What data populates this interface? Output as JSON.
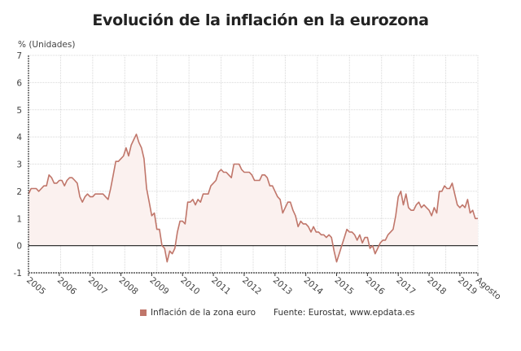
{
  "chart_data": {
    "type": "area",
    "title": "Evolución de la inflación en la eurozona",
    "ylabel": "% (Unidades)",
    "xlabel": "",
    "ylim": [
      -1,
      7
    ],
    "yticks": [
      "-1",
      "0",
      "1",
      "2",
      "3",
      "4",
      "5",
      "6",
      "7"
    ],
    "xtick_labels": [
      "2005",
      "2006",
      "2007",
      "2008",
      "2009",
      "2010",
      "2011",
      "2012",
      "2013",
      "2014",
      "2015",
      "2016",
      "2017",
      "2018",
      "2019",
      "Agosto"
    ],
    "x_start": "2005-01",
    "x_end": "2019-08",
    "frequency": "monthly",
    "grid": true,
    "legend_position": "bottom",
    "series": [
      {
        "name": "Inflación de la zona euro",
        "color": "#c0766a",
        "values": [
          1.9,
          2.1,
          2.1,
          2.1,
          2.0,
          2.1,
          2.2,
          2.2,
          2.6,
          2.5,
          2.3,
          2.3,
          2.4,
          2.4,
          2.2,
          2.4,
          2.5,
          2.5,
          2.4,
          2.3,
          1.8,
          1.6,
          1.8,
          1.9,
          1.8,
          1.8,
          1.9,
          1.9,
          1.9,
          1.9,
          1.8,
          1.7,
          2.1,
          2.6,
          3.1,
          3.1,
          3.2,
          3.3,
          3.6,
          3.3,
          3.7,
          3.9,
          4.1,
          3.8,
          3.6,
          3.2,
          2.1,
          1.6,
          1.1,
          1.2,
          0.6,
          0.6,
          0.0,
          -0.1,
          -0.6,
          -0.2,
          -0.3,
          -0.1,
          0.5,
          0.9,
          0.9,
          0.8,
          1.6,
          1.6,
          1.7,
          1.5,
          1.7,
          1.6,
          1.9,
          1.9,
          1.9,
          2.2,
          2.3,
          2.4,
          2.7,
          2.8,
          2.7,
          2.7,
          2.6,
          2.5,
          3.0,
          3.0,
          3.0,
          2.8,
          2.7,
          2.7,
          2.7,
          2.6,
          2.4,
          2.4,
          2.4,
          2.6,
          2.6,
          2.5,
          2.2,
          2.2,
          2.0,
          1.8,
          1.7,
          1.2,
          1.4,
          1.6,
          1.6,
          1.3,
          1.1,
          0.7,
          0.9,
          0.8,
          0.8,
          0.7,
          0.5,
          0.7,
          0.5,
          0.5,
          0.4,
          0.4,
          0.3,
          0.4,
          0.3,
          -0.2,
          -0.6,
          -0.3,
          0.0,
          0.3,
          0.6,
          0.5,
          0.5,
          0.4,
          0.2,
          0.4,
          0.1,
          0.3,
          0.3,
          -0.1,
          0.0,
          -0.3,
          -0.1,
          0.1,
          0.2,
          0.2,
          0.4,
          0.5,
          0.6,
          1.1,
          1.8,
          2.0,
          1.5,
          1.9,
          1.4,
          1.3,
          1.3,
          1.5,
          1.6,
          1.4,
          1.5,
          1.4,
          1.3,
          1.1,
          1.4,
          1.2,
          2.0,
          2.0,
          2.2,
          2.1,
          2.1,
          2.3,
          1.9,
          1.5,
          1.4,
          1.5,
          1.4,
          1.7,
          1.2,
          1.3,
          1.0,
          1.0
        ]
      }
    ],
    "source": "Fuente: Eurostat, www.epdata.es"
  }
}
